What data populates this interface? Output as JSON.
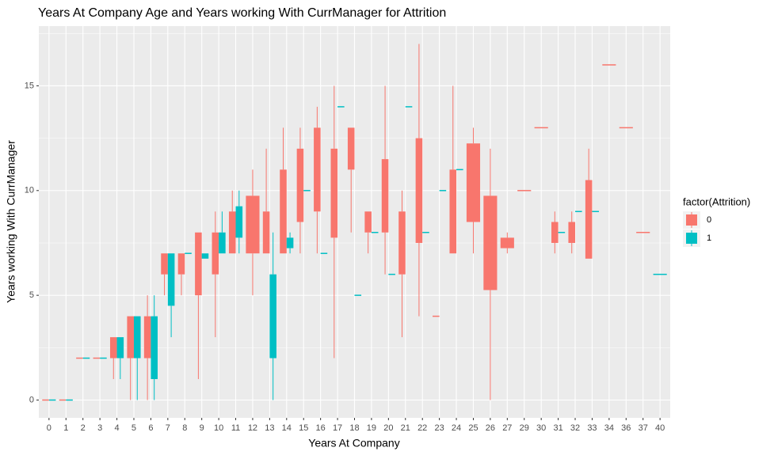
{
  "chart_data": {
    "type": "boxplot",
    "title": "Years At Company Age and Years working With CurrManager for Attrition",
    "x_label": "Years At Company",
    "y_label": "Years working With CurrManager",
    "legend_title": "factor(Attrition)",
    "legend_position": "right",
    "grid": true,
    "categories": [
      "0",
      "1",
      "2",
      "3",
      "4",
      "5",
      "6",
      "7",
      "8",
      "9",
      "10",
      "11",
      "12",
      "13",
      "14",
      "15",
      "16",
      "17",
      "18",
      "19",
      "20",
      "21",
      "22",
      "23",
      "24",
      "25",
      "26",
      "27",
      "29",
      "30",
      "31",
      "32",
      "33",
      "34",
      "36",
      "37",
      "40"
    ],
    "ylim": [
      -0.85,
      17.85
    ],
    "yticks": [
      0,
      5,
      10,
      15
    ],
    "series": [
      {
        "name": "0",
        "color": "#F8766D",
        "low": [
          0,
          0,
          2,
          2,
          1,
          0,
          0,
          5,
          5,
          1,
          3,
          7,
          5,
          7,
          7,
          7,
          7,
          2,
          8,
          7,
          6,
          3,
          4,
          4,
          7,
          7,
          0,
          7,
          10,
          13,
          7,
          7,
          6.75,
          16,
          13,
          8,
          null
        ],
        "q1": [
          0,
          0,
          2,
          2,
          2,
          2,
          2,
          6,
          6,
          5,
          6,
          7,
          7,
          7,
          7,
          8.5,
          9,
          7.75,
          11,
          8,
          8,
          6,
          7.5,
          4,
          7,
          8.5,
          5.25,
          7.25,
          10,
          13,
          7.5,
          7.5,
          6.75,
          16,
          13,
          8,
          null
        ],
        "q3": [
          0,
          0,
          2,
          2,
          3,
          4,
          4,
          7,
          7,
          8,
          8,
          9,
          9.75,
          9,
          11,
          12,
          13,
          12,
          13,
          9,
          11.5,
          9,
          12.5,
          4,
          11,
          12.25,
          9.75,
          7.75,
          10,
          13,
          8.5,
          8.5,
          10.5,
          16,
          13,
          8,
          null
        ],
        "high": [
          0,
          0,
          2,
          2,
          3,
          4,
          5,
          7,
          7,
          8,
          9,
          10,
          11,
          12,
          13,
          13,
          14,
          15,
          13,
          9,
          15,
          10,
          17,
          4,
          15,
          13,
          12,
          8,
          10,
          13,
          9,
          9,
          12,
          16,
          13,
          8,
          null
        ]
      },
      {
        "name": "1",
        "color": "#00BFC4",
        "low": [
          0,
          0,
          2,
          2,
          1,
          0,
          0,
          3,
          7,
          6.75,
          7,
          7,
          null,
          0,
          7,
          10,
          7,
          14,
          5,
          8,
          6,
          14,
          8,
          10,
          11,
          null,
          null,
          null,
          null,
          null,
          8,
          9,
          9,
          null,
          null,
          null,
          6
        ],
        "q1": [
          0,
          0,
          2,
          2,
          2,
          2,
          1,
          4.5,
          7,
          6.75,
          7,
          7.75,
          null,
          2,
          7.25,
          10,
          7,
          14,
          5,
          8,
          6,
          14,
          8,
          10,
          11,
          null,
          null,
          null,
          null,
          null,
          8,
          9,
          9,
          null,
          null,
          null,
          6
        ],
        "q3": [
          0,
          0,
          2,
          2,
          3,
          4,
          4,
          7,
          7,
          7,
          8,
          9.25,
          null,
          6,
          7.75,
          10,
          7,
          14,
          5,
          8,
          6,
          14,
          8,
          10,
          11,
          null,
          null,
          null,
          null,
          null,
          8,
          9,
          9,
          null,
          null,
          null,
          6
        ],
        "high": [
          0,
          0,
          2,
          2,
          3,
          4,
          5,
          7,
          7,
          7,
          9,
          10,
          null,
          8,
          8,
          10,
          7,
          14,
          5,
          8,
          6,
          14,
          8,
          10,
          11,
          null,
          null,
          null,
          null,
          null,
          8,
          9,
          9,
          null,
          null,
          null,
          6
        ]
      }
    ]
  }
}
